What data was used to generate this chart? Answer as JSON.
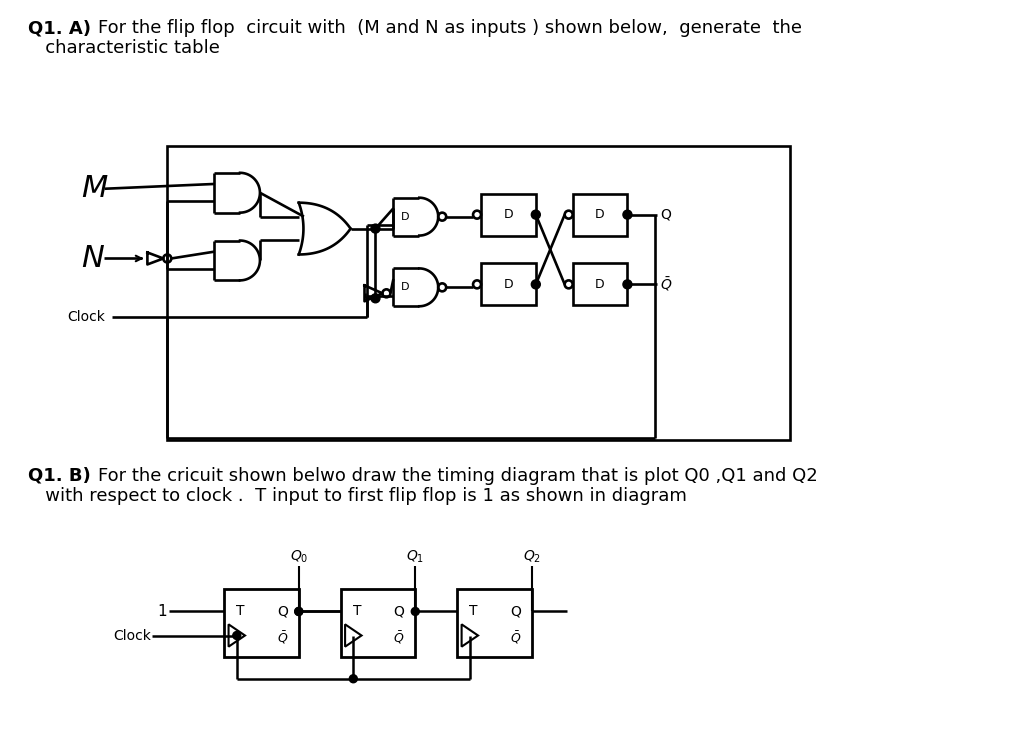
{
  "bg_color": "#ffffff",
  "text_color": "#000000",
  "blue_color": "#1a1aff",
  "brown_color": "#8B4513",
  "black": "#000000",
  "title_a_bold": "Q1. A)",
  "title_a_rest": "For the flip flop  circuit with  (M and N as inputs ) shown below,  generate  the\n   characteristic table",
  "title_b_bold": "Q1. B)",
  "title_b_rest": "For the cricuit shown belwo draw the timing diagram that is plot Q0 ,Q1 and Q2\n   with respect to clock .  T input to first flip flop is 1 as shown in diagram"
}
